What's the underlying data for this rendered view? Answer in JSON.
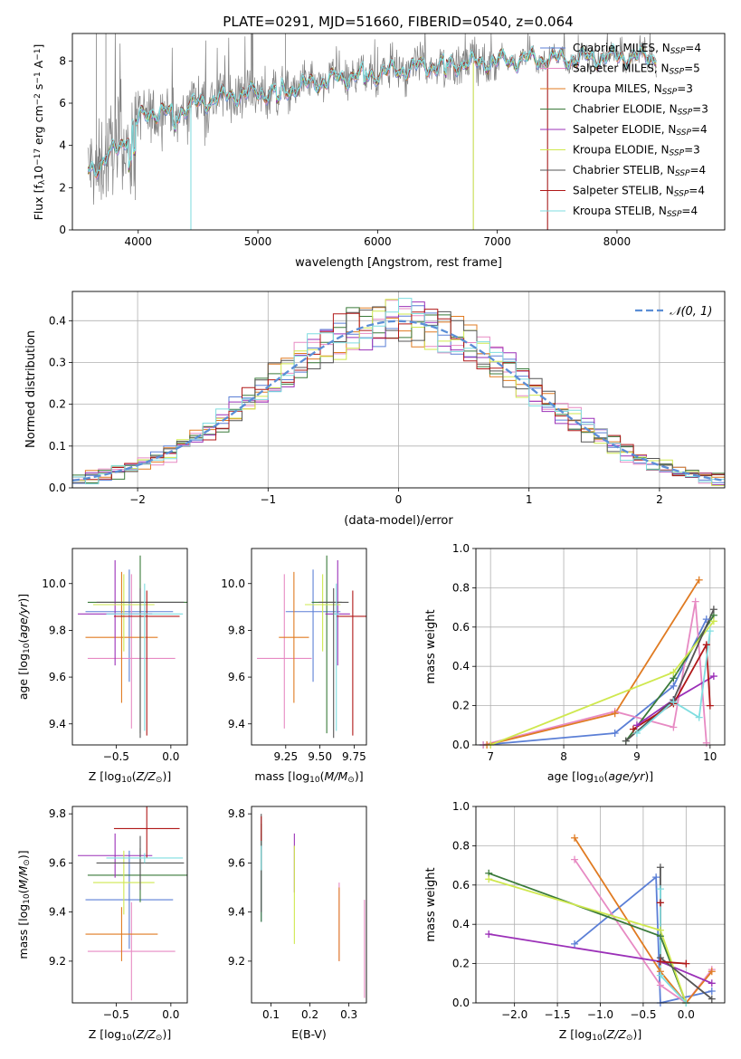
{
  "figure_title": "PLATE=0291, MJD=51660, FIBERID=0540, z=0.064",
  "colors": {
    "Chabrier MILES": "#5b7fd6",
    "Salpeter MILES": "#e78ac3",
    "Kroupa MILES": "#e07b22",
    "Chabrier ELODIE": "#3a7a3a",
    "Salpeter ELODIE": "#9b30b8",
    "Kroupa ELODIE": "#cfe84f",
    "Chabrier STELIB": "#555555",
    "Salpeter STELIB": "#b01818",
    "Kroupa STELIB": "#7fdde0",
    "data": "#808080",
    "normal": "#5b8ed6"
  },
  "chart_data": [
    {
      "type": "line",
      "id": "spectrum",
      "xlabel": "wavelength [Angstrom, rest frame]",
      "ylabel_main": "Flux [f",
      "ylabel_sub": "λ",
      "ylabel_mid": "10",
      "ylabel_exp1": "−17",
      "ylabel_mid2": " erg cm",
      "ylabel_exp2": "−2",
      "ylabel_mid3": " s",
      "ylabel_exp3": "−1",
      "ylabel_end": " A",
      "ylabel_exp4": "−1",
      "ylabel_close": "]",
      "xlim": [
        3450,
        8900
      ],
      "ylim": [
        0,
        9.3
      ],
      "xticks": [
        4000,
        5000,
        6000,
        7000,
        8000
      ],
      "yticks": [
        0,
        2,
        4,
        6,
        8
      ],
      "legend_position": "top-right",
      "legend": [
        {
          "name": "Chabrier MILES",
          "nssp": "4"
        },
        {
          "name": "Salpeter MILES",
          "nssp": "5"
        },
        {
          "name": "Kroupa MILES",
          "nssp": "3"
        },
        {
          "name": "Chabrier ELODIE",
          "nssp": "3"
        },
        {
          "name": "Salpeter ELODIE",
          "nssp": "4"
        },
        {
          "name": "Kroupa ELODIE",
          "nssp": "3"
        },
        {
          "name": "Chabrier STELIB",
          "nssp": "4"
        },
        {
          "name": "Salpeter STELIB",
          "nssp": "4"
        },
        {
          "name": "Kroupa STELIB",
          "nssp": "4"
        }
      ],
      "legend_n": "N",
      "legend_sub": "SSP",
      "continuum": [
        [
          3580,
          2.8
        ],
        [
          3700,
          3.2
        ],
        [
          3850,
          4.0
        ],
        [
          4000,
          5.2
        ],
        [
          4100,
          5.6
        ],
        [
          4300,
          5.5
        ],
        [
          4500,
          6.0
        ],
        [
          4800,
          6.4
        ],
        [
          5000,
          6.5
        ],
        [
          5200,
          6.6
        ],
        [
          5500,
          7.0
        ],
        [
          5800,
          7.3
        ],
        [
          6000,
          7.4
        ],
        [
          6300,
          7.7
        ],
        [
          6500,
          7.8
        ],
        [
          6800,
          7.9
        ],
        [
          7000,
          8.0
        ],
        [
          7300,
          8.1
        ],
        [
          7600,
          8.1
        ],
        [
          8000,
          8.2
        ],
        [
          8300,
          8.2
        ]
      ]
    },
    {
      "type": "bar",
      "id": "residuals",
      "xlabel": "(data-model)/error",
      "ylabel": "Normed distribution",
      "xlim": [
        -2.5,
        2.5
      ],
      "ylim": [
        0,
        0.47
      ],
      "xticks": [
        -2,
        -1,
        0,
        1,
        2
      ],
      "yticks": [
        0.0,
        0.1,
        0.2,
        0.3,
        0.4
      ],
      "grid": true,
      "legend_position": "top-right",
      "normal_label": "𝒩(0, 1)",
      "bin_width": 0.1
    },
    {
      "type": "scatter",
      "id": "age_vs_Z",
      "xlabel": "Z [log",
      "xlabel_sub": "10",
      "xlabel_end": "(Z/Z",
      "xlabel_sun": "⊙",
      "xlabel_close": ")]",
      "ylabel": "age  [log",
      "ylabel_sub": "10",
      "ylabel_end": "(age/yr)]",
      "xlim": [
        -0.9,
        0.15
      ],
      "ylim": [
        9.31,
        10.15
      ],
      "xticks": [
        -0.5,
        0.0
      ],
      "yticks": [
        9.4,
        9.6,
        9.8,
        10.0
      ],
      "points": [
        {
          "model": "Chabrier MILES",
          "x": -0.38,
          "xerr": [
            0.4,
            0.4
          ],
          "y": 9.88,
          "yerr": [
            0.3,
            0.18
          ]
        },
        {
          "model": "Salpeter MILES",
          "x": -0.36,
          "xerr": [
            0.4,
            0.4
          ],
          "y": 9.68,
          "yerr": [
            0.3,
            0.36
          ]
        },
        {
          "model": "Kroupa MILES",
          "x": -0.45,
          "xerr": [
            0.33,
            0.33
          ],
          "y": 9.77,
          "yerr": [
            0.28,
            0.28
          ]
        },
        {
          "model": "Chabrier ELODIE",
          "x": -0.28,
          "xerr": [
            0.48,
            0.48
          ],
          "y": 9.92,
          "yerr": [
            0.56,
            0.2
          ]
        },
        {
          "model": "Salpeter ELODIE",
          "x": -0.51,
          "xerr": [
            0.34,
            0.34
          ],
          "y": 9.87,
          "yerr": [
            0.22,
            0.23
          ]
        },
        {
          "model": "Kroupa ELODIE",
          "x": -0.43,
          "xerr": [
            0.28,
            0.28
          ],
          "y": 9.91,
          "yerr": [
            0.2,
            0.13
          ]
        },
        {
          "model": "Chabrier STELIB",
          "x": -0.28,
          "xerr": [
            0.4,
            0.4
          ],
          "y": 9.92,
          "yerr": [
            0.58,
            0.06
          ]
        },
        {
          "model": "Salpeter STELIB",
          "x": -0.22,
          "xerr": [
            0.3,
            0.3
          ],
          "y": 9.86,
          "yerr": [
            0.51,
            0.11
          ]
        },
        {
          "model": "Kroupa STELIB",
          "x": -0.24,
          "xerr": [
            0.35,
            0.35
          ],
          "y": 9.87,
          "yerr": [
            0.5,
            0.13
          ]
        }
      ]
    },
    {
      "type": "scatter",
      "id": "age_vs_mass",
      "xlabel": "mass [log",
      "xlabel_sub": "10",
      "xlabel_end": "(M/M",
      "xlabel_sun": "⊙",
      "xlabel_close": ")]",
      "xlim": [
        9.0,
        9.84
      ],
      "ylim": [
        9.31,
        10.15
      ],
      "xticks": [
        9.25,
        9.5,
        9.75
      ],
      "yticks": [
        9.4,
        9.6,
        9.8,
        10.0
      ],
      "points": [
        {
          "model": "Chabrier MILES",
          "x": 9.45,
          "xerr": [
            0.2,
            0.2
          ],
          "y": 9.88,
          "yerr": [
            0.3,
            0.18
          ]
        },
        {
          "model": "Salpeter MILES",
          "x": 9.24,
          "xerr": [
            0.2,
            0.2
          ],
          "y": 9.68,
          "yerr": [
            0.3,
            0.36
          ]
        },
        {
          "model": "Kroupa MILES",
          "x": 9.31,
          "xerr": [
            0.11,
            0.11
          ],
          "y": 9.77,
          "yerr": [
            0.28,
            0.28
          ]
        },
        {
          "model": "Chabrier ELODIE",
          "x": 9.55,
          "xerr": [
            0.11,
            0.11
          ],
          "y": 9.92,
          "yerr": [
            0.56,
            0.2
          ]
        },
        {
          "model": "Salpeter ELODIE",
          "x": 9.63,
          "xerr": [
            0.09,
            0.09
          ],
          "y": 9.87,
          "yerr": [
            0.22,
            0.23
          ]
        },
        {
          "model": "Kroupa ELODIE",
          "x": 9.52,
          "xerr": [
            0.13,
            0.13
          ],
          "y": 9.91,
          "yerr": [
            0.2,
            0.13
          ]
        },
        {
          "model": "Chabrier STELIB",
          "x": 9.6,
          "xerr": [
            0.11,
            0.11
          ],
          "y": 9.92,
          "yerr": [
            0.58,
            0.06
          ]
        },
        {
          "model": "Salpeter STELIB",
          "x": 9.74,
          "xerr": [
            0.12,
            0.12
          ],
          "y": 9.86,
          "yerr": [
            0.51,
            0.11
          ]
        },
        {
          "model": "Kroupa STELIB",
          "x": 9.62,
          "xerr": [
            0.02,
            0.02
          ],
          "y": 9.87,
          "yerr": [
            0.5,
            0.13
          ]
        }
      ]
    },
    {
      "type": "line",
      "id": "mw_vs_age",
      "xlabel": "age  [log",
      "xlabel_sub": "10",
      "xlabel_end": "(age/yr)]",
      "ylabel": "mass weight",
      "xlim": [
        6.8,
        10.2
      ],
      "ylim": [
        0,
        1
      ],
      "xticks": [
        7,
        8,
        9,
        10
      ],
      "yticks": [
        0.0,
        0.2,
        0.4,
        0.6,
        0.8,
        1.0
      ],
      "grid": true,
      "series": [
        {
          "model": "Chabrier MILES",
          "x": [
            6.9,
            8.7,
            9.5,
            9.95
          ],
          "y": [
            0.0,
            0.06,
            0.3,
            0.64
          ]
        },
        {
          "model": "Salpeter MILES",
          "x": [
            6.9,
            8.7,
            9.5,
            9.8,
            9.95
          ],
          "y": [
            0.0,
            0.17,
            0.09,
            0.73,
            0.01
          ]
        },
        {
          "model": "Kroupa MILES",
          "x": [
            6.95,
            8.7,
            9.85
          ],
          "y": [
            0.0,
            0.16,
            0.84
          ]
        },
        {
          "model": "Chabrier ELODIE",
          "x": [
            8.85,
            9.5,
            10.05
          ],
          "y": [
            0.02,
            0.34,
            0.66
          ]
        },
        {
          "model": "Salpeter ELODIE",
          "x": [
            9.0,
            9.5,
            10.05
          ],
          "y": [
            0.1,
            0.23,
            0.35
          ]
        },
        {
          "model": "Kroupa ELODIE",
          "x": [
            7.0,
            9.5,
            10.05
          ],
          "y": [
            0.0,
            0.37,
            0.63
          ]
        },
        {
          "model": "Chabrier STELIB",
          "x": [
            8.85,
            9.5,
            10.05
          ],
          "y": [
            0.02,
            0.23,
            0.69
          ]
        },
        {
          "model": "Salpeter STELIB",
          "x": [
            8.95,
            9.5,
            9.95,
            10.0
          ],
          "y": [
            0.08,
            0.21,
            0.51,
            0.2
          ]
        },
        {
          "model": "Kroupa STELIB",
          "x": [
            9.0,
            9.5,
            9.85,
            10.0
          ],
          "y": [
            0.06,
            0.22,
            0.14,
            0.58
          ]
        }
      ]
    },
    {
      "type": "scatter",
      "id": "mass_vs_Z",
      "xlabel": "Z [log",
      "xlabel_sub": "10",
      "xlabel_end": "(Z/Z",
      "xlabel_sun": "⊙",
      "xlabel_close": ")]",
      "ylabel": "mass [log",
      "ylabel_sub": "10",
      "ylabel_end": "(M/M",
      "ylabel_sun": "⊙",
      "ylabel_close": ")]",
      "xlim": [
        -0.9,
        0.15
      ],
      "ylim": [
        9.03,
        9.83
      ],
      "xticks": [
        -0.5,
        0.0
      ],
      "yticks": [
        9.2,
        9.4,
        9.6,
        9.8
      ],
      "points": [
        {
          "model": "Chabrier MILES",
          "x": -0.38,
          "xerr": [
            0.4,
            0.4
          ],
          "y": 9.45,
          "yerr": [
            0.2,
            0.2
          ]
        },
        {
          "model": "Salpeter MILES",
          "x": -0.36,
          "xerr": [
            0.4,
            0.4
          ],
          "y": 9.24,
          "yerr": [
            0.2,
            0.2
          ]
        },
        {
          "model": "Kroupa MILES",
          "x": -0.45,
          "xerr": [
            0.33,
            0.33
          ],
          "y": 9.31,
          "yerr": [
            0.11,
            0.11
          ]
        },
        {
          "model": "Chabrier ELODIE",
          "x": -0.28,
          "xerr": [
            0.48,
            0.48
          ],
          "y": 9.55,
          "yerr": [
            0.11,
            0.11
          ]
        },
        {
          "model": "Salpeter ELODIE",
          "x": -0.51,
          "xerr": [
            0.34,
            0.34
          ],
          "y": 9.63,
          "yerr": [
            0.09,
            0.09
          ]
        },
        {
          "model": "Kroupa ELODIE",
          "x": -0.43,
          "xerr": [
            0.28,
            0.28
          ],
          "y": 9.52,
          "yerr": [
            0.13,
            0.13
          ]
        },
        {
          "model": "Chabrier STELIB",
          "x": -0.28,
          "xerr": [
            0.4,
            0.4
          ],
          "y": 9.6,
          "yerr": [
            0.11,
            0.11
          ]
        },
        {
          "model": "Salpeter STELIB",
          "x": -0.22,
          "xerr": [
            0.3,
            0.3
          ],
          "y": 9.74,
          "yerr": [
            0.12,
            0.12
          ]
        },
        {
          "model": "Kroupa STELIB",
          "x": -0.24,
          "xerr": [
            0.35,
            0.35
          ],
          "y": 9.62,
          "yerr": [
            0.02,
            0.02
          ]
        }
      ]
    },
    {
      "type": "scatter",
      "id": "mass_vs_EBV",
      "xlabel": "E(B-V)",
      "xlim": [
        0.05,
        0.345
      ],
      "ylim": [
        9.03,
        9.83
      ],
      "xticks": [
        0.1,
        0.2,
        0.3
      ],
      "yticks": [
        9.2,
        9.4,
        9.6,
        9.8
      ],
      "points": [
        {
          "model": "Chabrier MILES",
          "x": 0.075,
          "y": 9.54,
          "yerr": [
            0.18,
            0.18
          ]
        },
        {
          "model": "Salpeter MILES",
          "x": 0.275,
          "y": 9.36,
          "yerr": [
            0.16,
            0.16
          ]
        },
        {
          "model": "Kroupa MILES",
          "x": 0.275,
          "y": 9.35,
          "yerr": [
            0.15,
            0.15
          ]
        },
        {
          "model": "Chabrier ELODIE",
          "x": 0.075,
          "y": 9.56,
          "yerr": [
            0.2,
            0.2
          ]
        },
        {
          "model": "Salpeter ELODIE",
          "x": 0.16,
          "y": 9.6,
          "yerr": [
            0.12,
            0.12
          ]
        },
        {
          "model": "Kroupa ELODIE",
          "x": 0.16,
          "y": 9.47,
          "yerr": [
            0.2,
            0.2
          ]
        },
        {
          "model": "Chabrier STELIB",
          "x": 0.075,
          "y": 9.6,
          "yerr": [
            0.2,
            0.2
          ]
        },
        {
          "model": "Salpeter STELIB",
          "x": 0.075,
          "y": 9.74,
          "yerr": [
            0.05,
            0.05
          ]
        },
        {
          "model": "Kroupa STELIB",
          "x": 0.075,
          "y": 9.62,
          "yerr": [
            0.05,
            0.05
          ]
        },
        {
          "model": "Salpeter MILES",
          "x": 0.34,
          "y": 9.25,
          "yerr": [
            0.2,
            0.2
          ]
        }
      ]
    },
    {
      "type": "line",
      "id": "mw_vs_Z",
      "xlabel": "Z [log",
      "xlabel_sub": "10",
      "xlabel_end": "(Z/Z",
      "xlabel_sun": "⊙",
      "xlabel_close": ")]",
      "ylabel": "mass weight",
      "xlim": [
        -2.45,
        0.45
      ],
      "ylim": [
        0,
        1
      ],
      "xticks": [
        -2.0,
        -1.5,
        -1.0,
        -0.5,
        0.0
      ],
      "yticks": [
        0.0,
        0.2,
        0.4,
        0.6,
        0.8,
        1.0
      ],
      "grid": true,
      "series": [
        {
          "model": "Chabrier MILES",
          "x": [
            -1.3,
            -0.35,
            -0.3,
            0.3
          ],
          "y": [
            0.3,
            0.64,
            0.0,
            0.06
          ]
        },
        {
          "model": "Salpeter MILES",
          "x": [
            -1.3,
            -0.3,
            0.0,
            0.3
          ],
          "y": [
            0.73,
            0.09,
            0.0,
            0.17
          ]
        },
        {
          "model": "Kroupa MILES",
          "x": [
            -1.3,
            -0.3,
            0.0,
            0.3
          ],
          "y": [
            0.84,
            0.16,
            0.0,
            0.16
          ]
        },
        {
          "model": "Chabrier ELODIE",
          "x": [
            -2.3,
            -0.3,
            0.0
          ],
          "y": [
            0.66,
            0.34,
            0.0
          ]
        },
        {
          "model": "Salpeter ELODIE",
          "x": [
            -2.3,
            -0.3,
            0.3
          ],
          "y": [
            0.35,
            0.21,
            0.1
          ]
        },
        {
          "model": "Kroupa ELODIE",
          "x": [
            -2.3,
            -0.3,
            0.0
          ],
          "y": [
            0.63,
            0.37,
            0.0
          ]
        },
        {
          "model": "Chabrier STELIB",
          "x": [
            -0.3,
            -0.3,
            0.3
          ],
          "y": [
            0.69,
            0.23,
            0.02
          ]
        },
        {
          "model": "Salpeter STELIB",
          "x": [
            -0.3,
            -0.3,
            0.0
          ],
          "y": [
            0.51,
            0.21,
            0.2
          ]
        },
        {
          "model": "Kroupa STELIB",
          "x": [
            -0.3,
            -0.3,
            0.0
          ],
          "y": [
            0.58,
            0.14,
            0.0
          ]
        }
      ]
    }
  ]
}
